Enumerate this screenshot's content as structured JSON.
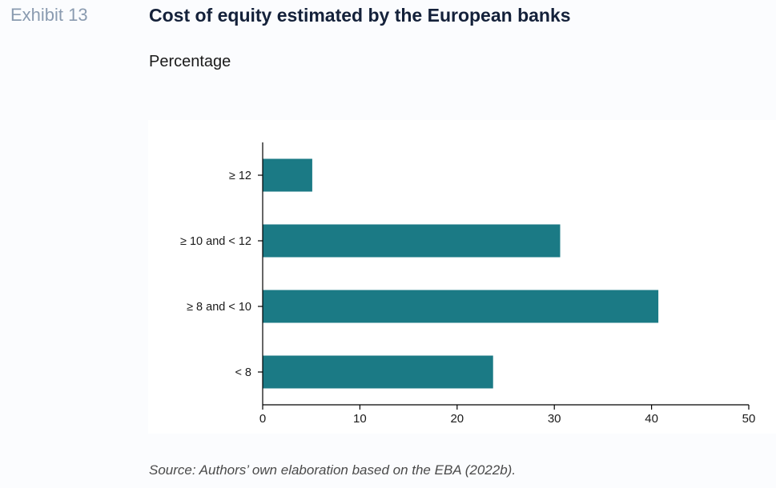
{
  "header": {
    "exhibit_label": "Exhibit 13",
    "title": "Cost of equity estimated by the European banks",
    "subtitle": "Percentage"
  },
  "footer": {
    "source": "Source: Authors’ own elaboration based on the EBA (2022b)."
  },
  "colors": {
    "bar": "#1b7a85",
    "axis": "#000000",
    "text": "#1a1a1a"
  },
  "chart_data": {
    "type": "bar",
    "orientation": "horizontal",
    "categories": [
      "≥ 12",
      "≥ 10 and < 12",
      "≥ 8 and < 10",
      "< 8"
    ],
    "values": [
      5.1,
      30.6,
      40.7,
      23.7
    ],
    "xlim": [
      0,
      50
    ],
    "xticks": [
      0,
      10,
      20,
      30,
      40,
      50
    ],
    "grid": false,
    "legend": "none"
  }
}
